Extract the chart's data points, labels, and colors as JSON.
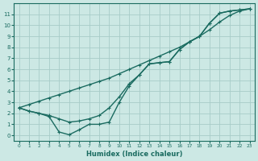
{
  "xlabel": "Humidex (Indice chaleur)",
  "bg_color": "#cce8e4",
  "grid_color": "#a8ccc8",
  "line_color": "#1a6b60",
  "xlim": [
    -0.5,
    23.5
  ],
  "ylim": [
    -0.5,
    12.0
  ],
  "xticks": [
    0,
    1,
    2,
    3,
    4,
    5,
    6,
    7,
    8,
    9,
    10,
    11,
    12,
    13,
    14,
    15,
    16,
    17,
    18,
    19,
    20,
    21,
    22,
    23
  ],
  "yticks": [
    0,
    1,
    2,
    3,
    4,
    5,
    6,
    7,
    8,
    9,
    10,
    11
  ],
  "line1_x": [
    0,
    1,
    2,
    3,
    4,
    5,
    6,
    7,
    8,
    9,
    10,
    11,
    12,
    13,
    14,
    15,
    16,
    17,
    18,
    19,
    20,
    21,
    22,
    23
  ],
  "line1_y": [
    2.5,
    2.8,
    3.1,
    3.4,
    3.7,
    4.0,
    4.3,
    4.6,
    4.9,
    5.2,
    5.6,
    6.0,
    6.4,
    6.8,
    7.2,
    7.6,
    8.0,
    8.5,
    9.0,
    9.6,
    10.3,
    10.9,
    11.3,
    11.5
  ],
  "line2_x": [
    0,
    1,
    2,
    3,
    4,
    5,
    6,
    7,
    8,
    9,
    10,
    11,
    12,
    13,
    14,
    15,
    16,
    17,
    18,
    19,
    20,
    21,
    22,
    23
  ],
  "line2_y": [
    2.5,
    2.2,
    2.0,
    1.8,
    1.5,
    1.2,
    1.3,
    1.5,
    1.8,
    2.5,
    3.5,
    4.7,
    5.5,
    6.5,
    6.6,
    6.7,
    7.8,
    8.5,
    9.0,
    10.2,
    11.1,
    11.3,
    11.4,
    11.5
  ],
  "line3_x": [
    0,
    1,
    2,
    3,
    4,
    5,
    6,
    7,
    8,
    9,
    10,
    11,
    12,
    13,
    14,
    15,
    16,
    17,
    18,
    19,
    20,
    21,
    22,
    23
  ],
  "line3_y": [
    2.5,
    2.2,
    2.0,
    1.7,
    0.3,
    0.05,
    0.5,
    1.0,
    1.0,
    1.2,
    3.0,
    4.5,
    5.5,
    6.5,
    6.6,
    6.7,
    7.8,
    8.5,
    9.0,
    10.2,
    11.1,
    11.3,
    11.4,
    11.5
  ],
  "marker": "+",
  "markersize": 3,
  "markeredgewidth": 0.8,
  "linewidth": 1.0
}
